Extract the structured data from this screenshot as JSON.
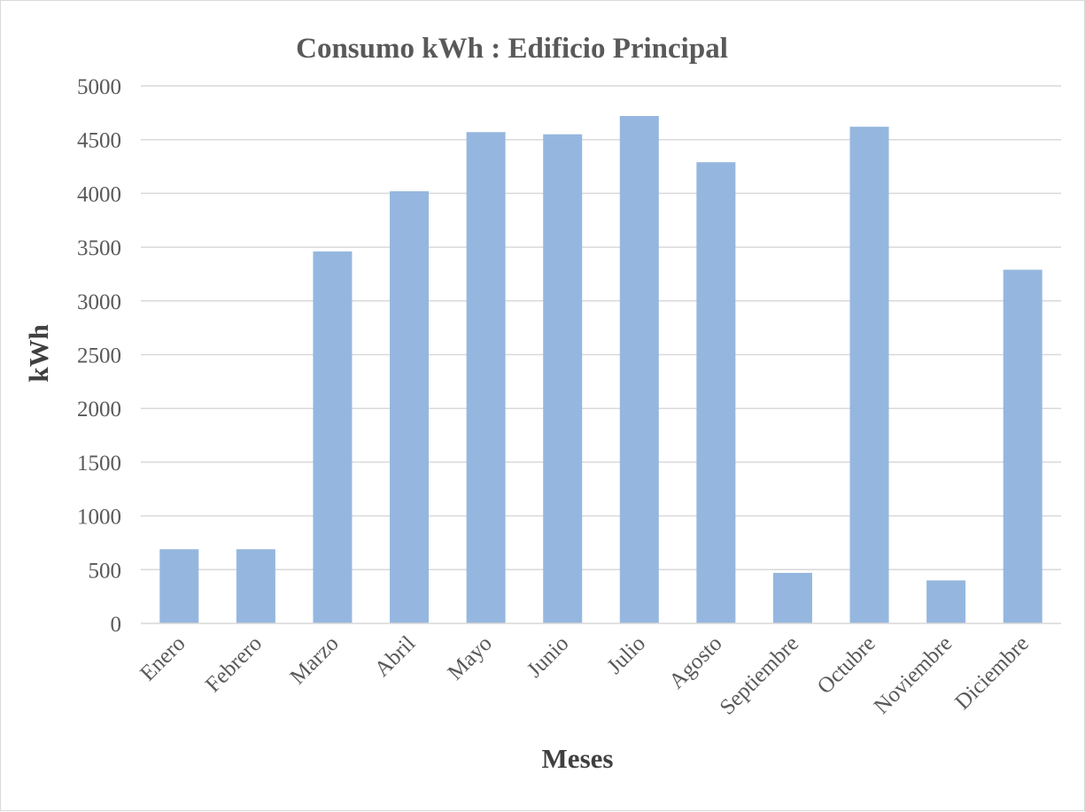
{
  "chart_data": {
    "type": "bar",
    "title": "Consumo kWh : Edificio Principal",
    "xlabel": "Meses",
    "ylabel": "kWh",
    "categories": [
      "Enero",
      "Febrero",
      "Marzo",
      "Abril",
      "Mayo",
      "Junio",
      "Julio",
      "Agosto",
      "Septiembre",
      "Octubre",
      "Noviembre",
      "Diciembre"
    ],
    "values": [
      690,
      690,
      3460,
      4020,
      4570,
      4550,
      4720,
      4290,
      470,
      4620,
      400,
      3290
    ],
    "ylim": [
      0,
      5000
    ],
    "yticks": [
      "0",
      "500",
      "1000",
      "1500",
      "2000",
      "2500",
      "3000",
      "3500",
      "4000",
      "4500",
      "5000"
    ],
    "grid": true,
    "legend": "none",
    "bar_color": "#95B7DF"
  }
}
